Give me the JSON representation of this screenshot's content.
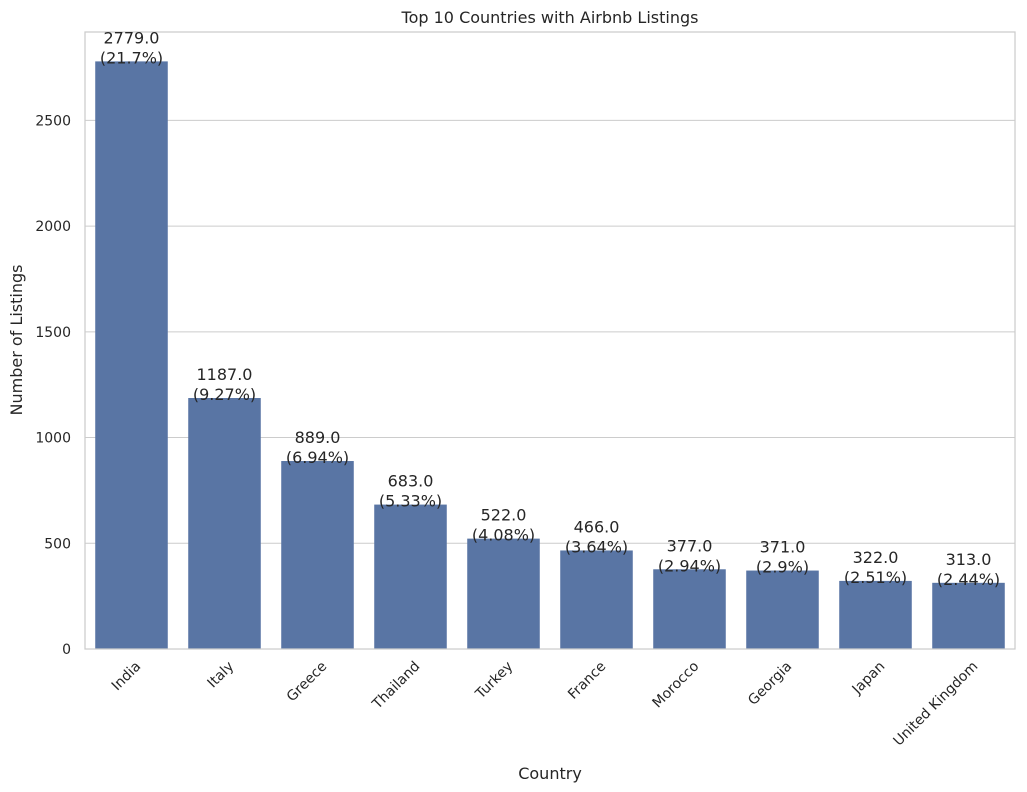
{
  "chart_data": {
    "type": "bar",
    "title": "Top 10 Countries with Airbnb Listings",
    "xlabel": "Country",
    "ylabel": "Number of Listings",
    "categories": [
      "India",
      "Italy",
      "Greece",
      "Thailand",
      "Turkey",
      "France",
      "Morocco",
      "Georgia",
      "Japan",
      "United Kingdom"
    ],
    "values": [
      2779,
      1187,
      889,
      683,
      522,
      466,
      377,
      371,
      322,
      313
    ],
    "value_labels": [
      "2779.0",
      "1187.0",
      "889.0",
      "683.0",
      "522.0",
      "466.0",
      "377.0",
      "371.0",
      "322.0",
      "313.0"
    ],
    "percent_labels": [
      "(21.7%)",
      "(9.27%)",
      "(6.94%)",
      "(5.33%)",
      "(4.08%)",
      "(3.64%)",
      "(2.94%)",
      "(2.9%)",
      "(2.51%)",
      "(2.44%)"
    ],
    "yticks": [
      0,
      500,
      1000,
      1500,
      2000,
      2500
    ],
    "ytick_labels": [
      "0",
      "500",
      "1000",
      "1500",
      "2000",
      "2500"
    ],
    "ylim": [
      0,
      2918
    ],
    "grid": "horizontal",
    "bar_color": "#5975a4"
  }
}
